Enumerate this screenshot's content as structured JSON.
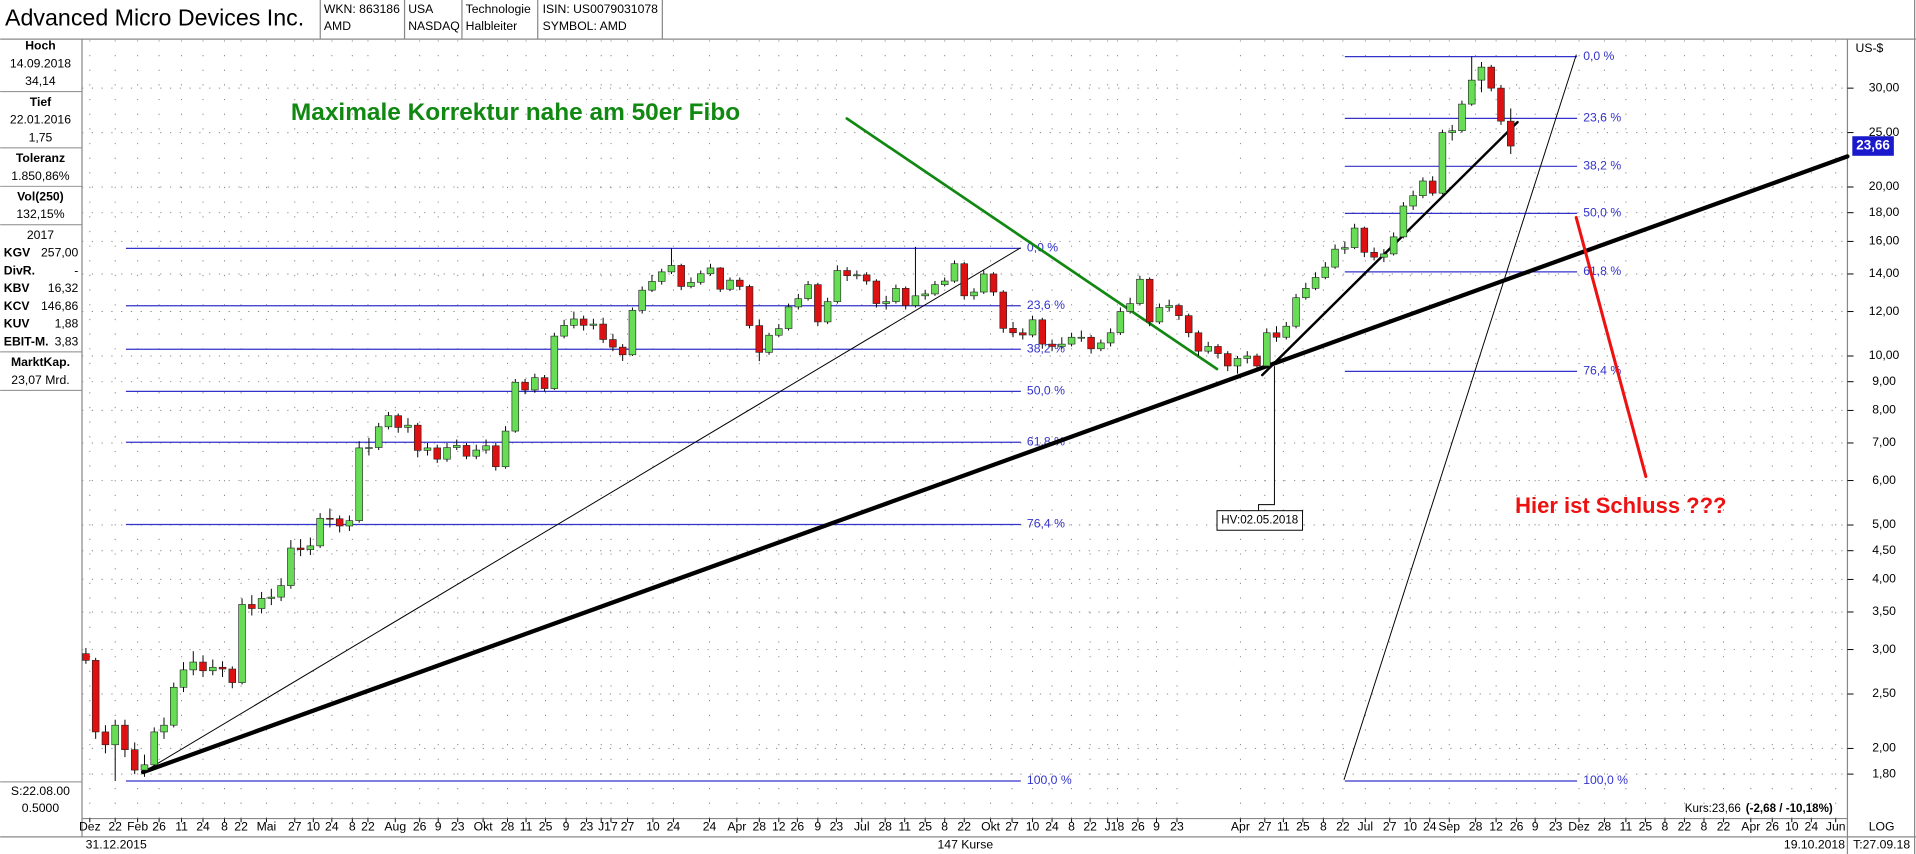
{
  "header": {
    "title": "Advanced Micro Devices Inc.",
    "fields": [
      [
        "WKN: 863186",
        "AMD"
      ],
      [
        "USA",
        "NASDAQ"
      ],
      [
        "Technologie",
        "Halbleiter"
      ],
      [
        "ISIN: US0079031078",
        "SYMBOL: AMD"
      ]
    ]
  },
  "sidebar": {
    "blocks": [
      {
        "title": "Hoch",
        "lines": [
          "14.09.2018",
          "34,14"
        ]
      },
      {
        "title": "Tief",
        "lines": [
          "22.01.2016",
          "1,75"
        ]
      },
      {
        "title": "Toleranz",
        "lines": [
          "1.850,86%"
        ]
      },
      {
        "title": "Vol(250)",
        "lines": [
          "132,15%"
        ]
      },
      {
        "title": "2017",
        "rows": [
          [
            "KGV",
            "257,00"
          ],
          [
            "DivR.",
            "-"
          ],
          [
            "KBV",
            "16,32"
          ],
          [
            "KCV",
            "146,86"
          ],
          [
            "KUV",
            "1,88"
          ],
          [
            "EBIT-M.",
            "3,83"
          ]
        ]
      },
      {
        "title": "MarktKap.",
        "lines": [
          "23,07 Mrd."
        ]
      }
    ],
    "scale": [
      "S:22.08.00",
      "0.5000"
    ]
  },
  "footer": {
    "start": "31.12.2015",
    "count": "147 Kurse",
    "end": "19.10.2018",
    "quote": "Kurs:23,66",
    "change": "(-2,68 / -10,18%)",
    "scale": "LOG",
    "t": "T:27.09.18"
  },
  "chart_data": {
    "type": "candlestick",
    "log_scale": true,
    "grid": true,
    "y_unit": "US-$",
    "price_tag": "23,66",
    "up_color": "#66dd55",
    "down_color": "#dd1111",
    "fib_color": "#3333cc",
    "annotations": [
      "Maximale Korrektur nahe am 50er Fibo",
      "Hier ist Schluss ???",
      "HV:02.05.2018"
    ],
    "xlim": [
      -0.4,
      180.5
    ],
    "ylim": [
      1.5,
      36.5
    ],
    "yticks": [
      {
        "value": 1.8,
        "label": "1,80"
      },
      {
        "value": 2,
        "label": "2,00"
      },
      {
        "value": 2.5,
        "label": "2,50"
      },
      {
        "value": 3,
        "label": "3,00"
      },
      {
        "value": 3.5,
        "label": "3,50"
      },
      {
        "value": 4,
        "label": "4,00"
      },
      {
        "value": 4.5,
        "label": "4,50"
      },
      {
        "value": 5,
        "label": "5,00"
      },
      {
        "value": 6,
        "label": "6,00"
      },
      {
        "value": 7,
        "label": "7,00"
      },
      {
        "value": 8,
        "label": "8,00"
      },
      {
        "value": 9,
        "label": "9,00"
      },
      {
        "value": 10,
        "label": "10,00"
      },
      {
        "value": 12,
        "label": "12,00"
      },
      {
        "value": 14,
        "label": "14,00"
      },
      {
        "value": 16,
        "label": "16,00"
      },
      {
        "value": 18,
        "label": "18,00"
      },
      {
        "value": 20,
        "label": "20,00"
      },
      {
        "value": 25,
        "label": "25,00"
      },
      {
        "value": 30,
        "label": "30,00"
      }
    ],
    "xticks": [
      {
        "value": 0.4,
        "label": "Dez"
      },
      {
        "value": 3,
        "label": "22"
      },
      {
        "value": 5.3,
        "label": "Feb"
      },
      {
        "value": 7.5,
        "label": "26"
      },
      {
        "value": 9.8,
        "label": "11"
      },
      {
        "value": 12,
        "label": "24"
      },
      {
        "value": 14.2,
        "label": "8"
      },
      {
        "value": 15.9,
        "label": "22"
      },
      {
        "value": 18.5,
        "label": "Mai"
      },
      {
        "value": 21.4,
        "label": "27"
      },
      {
        "value": 23.3,
        "label": "10"
      },
      {
        "value": 25.2,
        "label": "24"
      },
      {
        "value": 27.3,
        "label": "8"
      },
      {
        "value": 28.9,
        "label": "22"
      },
      {
        "value": 31.7,
        "label": "Aug"
      },
      {
        "value": 34.2,
        "label": "26"
      },
      {
        "value": 36.1,
        "label": "9"
      },
      {
        "value": 38.1,
        "label": "23"
      },
      {
        "value": 40.7,
        "label": "Okt"
      },
      {
        "value": 43.2,
        "label": "28"
      },
      {
        "value": 45.1,
        "label": "11"
      },
      {
        "value": 47.1,
        "label": "25"
      },
      {
        "value": 49.2,
        "label": "9"
      },
      {
        "value": 51.3,
        "label": "23"
      },
      {
        "value": 52.8,
        "label": "J"
      },
      {
        "value": 53.8,
        "label": "17"
      },
      {
        "value": 55.5,
        "label": "27"
      },
      {
        "value": 58.1,
        "label": "10"
      },
      {
        "value": 60.2,
        "label": "24"
      },
      {
        "value": 63.9,
        "label": "24"
      },
      {
        "value": 66.7,
        "label": "Apr"
      },
      {
        "value": 69,
        "label": "28"
      },
      {
        "value": 71,
        "label": "12"
      },
      {
        "value": 72.9,
        "label": "26"
      },
      {
        "value": 75,
        "label": "9"
      },
      {
        "value": 76.9,
        "label": "23"
      },
      {
        "value": 79.5,
        "label": "Jul"
      },
      {
        "value": 81.9,
        "label": "28"
      },
      {
        "value": 83.9,
        "label": "11"
      },
      {
        "value": 86,
        "label": "25"
      },
      {
        "value": 88,
        "label": "8"
      },
      {
        "value": 90,
        "label": "22"
      },
      {
        "value": 92.7,
        "label": "Okt"
      },
      {
        "value": 94.9,
        "label": "27"
      },
      {
        "value": 97,
        "label": "10"
      },
      {
        "value": 99,
        "label": "24"
      },
      {
        "value": 101,
        "label": "8"
      },
      {
        "value": 102.9,
        "label": "22"
      },
      {
        "value": 104.7,
        "label": "J"
      },
      {
        "value": 105.7,
        "label": "18"
      },
      {
        "value": 107.8,
        "label": "26"
      },
      {
        "value": 109.7,
        "label": "9"
      },
      {
        "value": 111.8,
        "label": "23"
      },
      {
        "value": 118.3,
        "label": "Apr"
      },
      {
        "value": 120.8,
        "label": "27"
      },
      {
        "value": 122.7,
        "label": "11"
      },
      {
        "value": 124.7,
        "label": "25"
      },
      {
        "value": 126.8,
        "label": "8"
      },
      {
        "value": 128.8,
        "label": "22"
      },
      {
        "value": 131.1,
        "label": "Jul"
      },
      {
        "value": 133.6,
        "label": "27"
      },
      {
        "value": 135.7,
        "label": "10"
      },
      {
        "value": 137.7,
        "label": "24"
      },
      {
        "value": 139.7,
        "label": "Sep"
      },
      {
        "value": 142.4,
        "label": "28"
      },
      {
        "value": 144.5,
        "label": "12"
      },
      {
        "value": 146.6,
        "label": "26"
      },
      {
        "value": 148.5,
        "label": "9"
      },
      {
        "value": 150.6,
        "label": "23"
      },
      {
        "value": 153,
        "label": "Dez"
      },
      {
        "value": 155.6,
        "label": "28"
      },
      {
        "value": 157.8,
        "label": "11"
      },
      {
        "value": 159.8,
        "label": "25"
      },
      {
        "value": 161.8,
        "label": "8"
      },
      {
        "value": 163.8,
        "label": "22"
      },
      {
        "value": 165.8,
        "label": "8"
      },
      {
        "value": 167.8,
        "label": "22"
      },
      {
        "value": 170.6,
        "label": "Apr"
      },
      {
        "value": 172.8,
        "label": "26"
      },
      {
        "value": 174.8,
        "label": "10"
      },
      {
        "value": 176.8,
        "label": "24"
      },
      {
        "value": 179.3,
        "label": "Jun"
      }
    ],
    "fibonacci": [
      {
        "from": 4.1,
        "to": 95.8,
        "levels": [
          {
            "value": 15.55,
            "label": "0,0 %"
          },
          {
            "value": 12.29,
            "label": "23,6 %"
          },
          {
            "value": 10.28,
            "label": "38,2 %"
          },
          {
            "value": 8.65,
            "label": "50,0 %"
          },
          {
            "value": 7.02,
            "label": "61,8 %"
          },
          {
            "value": 5.01,
            "label": "76,4 %"
          },
          {
            "value": 1.75,
            "label": "100,0 %"
          }
        ]
      },
      {
        "from": 129,
        "to": 152.8,
        "levels": [
          {
            "value": 34.14,
            "label": "0,0 %"
          },
          {
            "value": 26.5,
            "label": "23,6 %"
          },
          {
            "value": 21.77,
            "label": "38,2 %"
          },
          {
            "value": 17.95,
            "label": "50,0 %"
          },
          {
            "value": 14.12,
            "label": "61,8 %"
          },
          {
            "value": 9.39,
            "label": "76,4 %"
          },
          {
            "value": 1.75,
            "label": "100,0 %"
          }
        ]
      }
    ],
    "open": [
      2.95,
      2.87,
      2.14,
      2.03,
      2.2,
      1.99,
      1.83,
      1.87,
      2.14,
      2.2,
      2.57,
      2.76,
      2.85,
      2.75,
      2.79,
      2.77,
      2.62,
      3.61,
      3.55,
      3.7,
      3.72,
      3.9,
      4.55,
      4.52,
      4.59,
      5.14,
      5.13,
      4.98,
      5.09,
      6.86,
      6.87,
      7.48,
      7.83,
      7.46,
      7.53,
      6.79,
      6.86,
      6.55,
      6.87,
      6.93,
      6.63,
      6.8,
      6.92,
      6.35,
      7.35,
      8.98,
      8.7,
      9.15,
      8.75,
      10.85,
      11.34,
      11.64,
      11.34,
      11.4,
      10.7,
      10.37,
      10.05,
      12.06,
      13.1,
      13.58,
      14.12,
      14.5,
      13.3,
      13.53,
      14.01,
      14.35,
      13.15,
      13.65,
      13.3,
      11.33,
      10.15,
      10.89,
      11.19,
      12.23,
      12.65,
      13.4,
      11.5,
      12.5,
      14.2,
      13.9,
      13.95,
      13.6,
      12.4,
      12.5,
      13.2,
      12.3,
      12.8,
      12.9,
      13.4,
      13.6,
      14.6,
      12.8,
      13.0,
      14.0,
      13.0,
      11.2,
      11.0,
      10.9,
      11.6,
      10.5,
      10.4,
      10.5,
      10.8,
      10.8,
      10.3,
      10.55,
      11.0,
      12.0,
      12.4,
      13.7,
      11.5,
      12.2,
      12.3,
      11.8,
      11.0,
      10.2,
      10.4,
      10.1,
      9.6,
      9.9,
      10.0,
      9.6,
      11.0,
      10.8,
      11.3,
      12.7,
      13.2,
      13.8,
      14.4,
      15.5,
      15.6,
      16.9,
      15.3,
      15.0,
      15.2,
      16.3,
      18.5,
      19.3,
      20.5,
      19.5,
      25.0,
      25.2,
      28.1,
      31.0,
      32.7,
      30.0,
      26.2
    ],
    "high": [
      3.02,
      2.9,
      2.2,
      2.25,
      2.25,
      2.05,
      1.95,
      2.18,
      2.27,
      2.62,
      2.85,
      2.98,
      2.93,
      2.88,
      2.86,
      2.8,
      3.7,
      3.75,
      3.8,
      3.85,
      4.02,
      4.7,
      4.72,
      4.75,
      5.25,
      5.35,
      5.2,
      5.2,
      7.05,
      7.15,
      7.6,
      7.95,
      7.9,
      7.75,
      7.6,
      7.0,
      6.95,
      7.0,
      7.1,
      7.0,
      6.95,
      7.1,
      7.0,
      7.5,
      9.1,
      9.1,
      9.3,
      9.25,
      11.0,
      11.6,
      12.0,
      11.8,
      11.65,
      11.7,
      10.95,
      10.5,
      12.2,
      13.3,
      13.95,
      14.3,
      15.55,
      14.6,
      13.8,
      14.2,
      14.6,
      14.4,
      13.8,
      13.8,
      13.4,
      11.6,
      11.0,
      11.4,
      12.4,
      12.9,
      13.6,
      13.5,
      12.7,
      14.5,
      14.4,
      14.2,
      14.1,
      13.7,
      12.8,
      13.4,
      13.3,
      15.65,
      13.1,
      13.6,
      13.8,
      14.8,
      14.7,
      13.2,
      14.2,
      14.1,
      13.1,
      11.5,
      11.2,
      11.8,
      11.7,
      10.7,
      10.8,
      11.0,
      11.1,
      10.9,
      10.7,
      11.2,
      12.2,
      12.7,
      13.9,
      13.8,
      12.4,
      12.6,
      12.4,
      11.9,
      11.1,
      10.6,
      10.5,
      10.2,
      10.0,
      10.2,
      10.1,
      11.2,
      11.3,
      11.5,
      12.9,
      13.5,
      14.1,
      14.7,
      15.8,
      16.0,
      17.2,
      17.0,
      15.6,
      15.5,
      16.6,
      18.8,
      19.7,
      20.8,
      20.9,
      25.3,
      25.8,
      28.5,
      34.14,
      33.4,
      33.0,
      30.4,
      27.6
    ],
    "low": [
      2.83,
      2.08,
      1.96,
      1.75,
      1.93,
      1.8,
      1.78,
      1.85,
      2.08,
      2.18,
      2.52,
      2.7,
      2.68,
      2.7,
      2.68,
      2.56,
      2.6,
      3.45,
      3.48,
      3.6,
      3.66,
      3.85,
      4.4,
      4.42,
      4.55,
      4.95,
      4.85,
      4.88,
      5.05,
      6.65,
      6.8,
      7.4,
      7.3,
      7.3,
      6.6,
      6.65,
      6.45,
      6.48,
      6.8,
      6.55,
      6.55,
      6.7,
      6.25,
      6.3,
      7.3,
      8.55,
      8.6,
      8.65,
      8.7,
      10.75,
      11.2,
      11.1,
      11.15,
      10.55,
      10.2,
      9.8,
      10.0,
      11.9,
      13.0,
      13.4,
      14.0,
      13.1,
      13.2,
      13.4,
      13.9,
      13.0,
      13.05,
      13.1,
      11.2,
      9.79,
      10.05,
      10.8,
      11.1,
      12.1,
      12.55,
      11.3,
      11.4,
      12.4,
      13.6,
      13.7,
      13.4,
      12.2,
      12.1,
      12.4,
      12.1,
      12.2,
      12.6,
      12.8,
      13.3,
      13.5,
      12.6,
      12.6,
      12.9,
      12.8,
      11.0,
      10.8,
      10.7,
      10.8,
      10.3,
      10.2,
      10.3,
      10.4,
      10.6,
      10.1,
      10.2,
      10.4,
      10.9,
      11.9,
      12.3,
      11.3,
      11.4,
      12.0,
      11.6,
      10.8,
      10.0,
      10.1,
      9.9,
      9.4,
      9.3,
      9.7,
      9.4,
      9.5,
      10.6,
      10.7,
      11.2,
      12.6,
      13.1,
      13.7,
      14.3,
      15.2,
      15.5,
      15.0,
      14.8,
      14.7,
      15.1,
      16.2,
      18.2,
      19.1,
      19.3,
      19.4,
      24.2,
      25.0,
      27.9,
      29.5,
      29.6,
      25.8,
      22.9
    ],
    "close": [
      2.87,
      2.14,
      2.03,
      2.2,
      1.99,
      1.83,
      1.87,
      2.14,
      2.2,
      2.57,
      2.76,
      2.85,
      2.75,
      2.79,
      2.77,
      2.62,
      3.61,
      3.55,
      3.7,
      3.72,
      3.9,
      4.55,
      4.52,
      4.59,
      5.14,
      5.13,
      4.98,
      5.09,
      6.86,
      6.87,
      7.48,
      7.83,
      7.46,
      7.53,
      6.79,
      6.86,
      6.55,
      6.87,
      6.93,
      6.63,
      6.8,
      6.92,
      6.35,
      7.35,
      8.98,
      8.7,
      9.15,
      8.75,
      10.85,
      11.34,
      11.64,
      11.34,
      11.4,
      10.7,
      10.37,
      10.05,
      12.06,
      13.1,
      13.58,
      14.12,
      14.5,
      13.3,
      13.53,
      14.01,
      14.35,
      13.15,
      13.65,
      13.3,
      11.33,
      10.15,
      10.89,
      11.19,
      12.23,
      12.65,
      13.4,
      11.5,
      12.5,
      14.2,
      13.9,
      13.95,
      13.6,
      12.4,
      12.5,
      13.2,
      12.3,
      12.8,
      12.9,
      13.4,
      13.6,
      14.6,
      12.8,
      13.0,
      14.0,
      13.0,
      11.2,
      11.0,
      10.9,
      11.6,
      10.5,
      10.4,
      10.5,
      10.8,
      10.8,
      10.3,
      10.55,
      11.0,
      12.0,
      12.4,
      13.7,
      11.5,
      12.2,
      12.3,
      11.8,
      11.0,
      10.2,
      10.4,
      10.1,
      9.6,
      9.9,
      10.0,
      9.6,
      11.0,
      10.8,
      11.3,
      12.7,
      13.2,
      13.8,
      14.4,
      15.5,
      15.6,
      16.9,
      15.3,
      15.0,
      15.2,
      16.3,
      18.5,
      19.3,
      20.5,
      19.5,
      25.0,
      25.2,
      28.1,
      31.0,
      32.7,
      30.0,
      26.2,
      23.66
    ]
  }
}
